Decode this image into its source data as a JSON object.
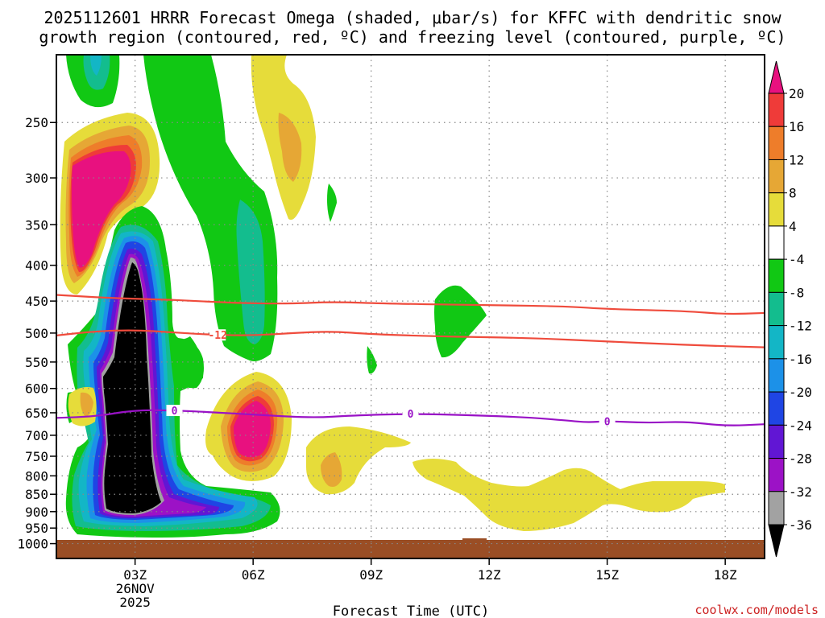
{
  "colors": {
    "magenta": "#e8117f",
    "red": "#ef3b39",
    "orange": "#ee7d2a",
    "amber": "#e6a735",
    "yellow": "#e6dc3a",
    "green": "#11c814",
    "teal": "#13bd8e",
    "cyan": "#13b6c6",
    "sky": "#1c91e8",
    "blue": "#1f45e4",
    "indigo": "#6116d4",
    "purple": "#9c12c6",
    "gray": "#a2a2a2",
    "black": "#000000",
    "ground": "#9a4e25",
    "dgz_line": "#ef4b3c",
    "freezing_line": "#9912c6",
    "grid": "#888888"
  },
  "chart_data": {
    "type": "heatmap",
    "title_line1": "2025112601 HRRR Forecast Omega (shaded, μbar/s) for KFFC with dendritic snow",
    "title_line2": "growth region (contoured, red, ºC) and freezing level (contoured, purple, ºC)",
    "xlabel": "Forecast Time (UTC)",
    "credit": "coolwx.com/models",
    "x_range_hours": [
      1,
      19
    ],
    "y_axis": {
      "type": "pressure_log",
      "range_hPa": [
        200,
        1050
      ],
      "tick_labels": [
        "250",
        "300",
        "350",
        "400",
        "450",
        "500",
        "550",
        "600",
        "650",
        "700",
        "750",
        "800",
        "850",
        "900",
        "950",
        "1000"
      ],
      "tick_values": [
        250,
        300,
        350,
        400,
        450,
        500,
        550,
        600,
        650,
        700,
        750,
        800,
        850,
        900,
        950,
        1000
      ]
    },
    "x_ticks": [
      {
        "hour": 3,
        "label": "03Z",
        "sub1": "26NOV",
        "sub2": "2025"
      },
      {
        "hour": 6,
        "label": "06Z"
      },
      {
        "hour": 9,
        "label": "09Z"
      },
      {
        "hour": 12,
        "label": "12Z"
      },
      {
        "hour": 15,
        "label": "15Z"
      },
      {
        "hour": 18,
        "label": "18Z"
      }
    ],
    "colorbar": {
      "labels": [
        "20",
        "16",
        "12",
        "8",
        "4",
        "-4",
        "-8",
        "-12",
        "-16",
        "-20",
        "-24",
        "-28",
        "-32",
        "-36"
      ],
      "colors": [
        "magenta",
        "red",
        "orange",
        "amber",
        "yellow",
        "white",
        "green",
        "teal",
        "cyan",
        "sky",
        "blue",
        "indigo",
        "purple",
        "gray",
        "black"
      ]
    },
    "contours": [
      {
        "name": "dgz-upper-contour",
        "value": "-12",
        "color": "dgz_line",
        "points": [
          [
            1.0,
            441
          ],
          [
            2.5,
            446
          ],
          [
            4.0,
            448
          ],
          [
            5.5,
            453
          ],
          [
            7.0,
            454
          ],
          [
            8.0,
            451
          ],
          [
            9.5,
            454
          ],
          [
            12.0,
            456
          ],
          [
            14.0,
            458
          ],
          [
            15.0,
            462
          ],
          [
            17.0,
            465
          ],
          [
            18.0,
            470
          ],
          [
            19.0,
            468
          ]
        ]
      },
      {
        "name": "dgz-lower-contour",
        "value": "-12",
        "color": "dgz_line",
        "label": "-12",
        "label_hour": 5.1,
        "points": [
          [
            1.0,
            504
          ],
          [
            2.0,
            497
          ],
          [
            3.0,
            495
          ],
          [
            4.0,
            499
          ],
          [
            5.0,
            503
          ],
          [
            6.0,
            504
          ],
          [
            7.0,
            500
          ],
          [
            8.0,
            497
          ],
          [
            9.0,
            502
          ],
          [
            11.0,
            506
          ],
          [
            13.0,
            508
          ],
          [
            15.0,
            514
          ],
          [
            17.0,
            520
          ],
          [
            19.0,
            524
          ]
        ]
      },
      {
        "name": "freezing-level-contour",
        "value": "0",
        "color": "freezing_line",
        "label": "0",
        "label_hours": [
          4.0,
          10.0,
          15.0
        ],
        "points": [
          [
            1.0,
            661
          ],
          [
            2.0,
            658
          ],
          [
            3.0,
            644
          ],
          [
            4.0,
            645
          ],
          [
            5.0,
            649
          ],
          [
            6.0,
            654
          ],
          [
            7.5,
            661
          ],
          [
            8.5,
            656
          ],
          [
            10.0,
            652
          ],
          [
            11.5,
            655
          ],
          [
            13.0,
            660
          ],
          [
            14.0,
            667
          ],
          [
            14.5,
            671
          ],
          [
            15.0,
            668
          ],
          [
            16.0,
            672
          ],
          [
            17.0,
            669
          ],
          [
            18.0,
            679
          ],
          [
            19.0,
            675
          ]
        ]
      }
    ],
    "omega_regions": [
      {
        "name": "ascent-core-upper-left",
        "layers": [
          "green",
          "teal",
          "cyan"
        ],
        "center": [
          2.1,
          225
        ],
        "note": "negative omega top-left"
      },
      {
        "name": "descent-core-left",
        "layers": [
          "yellow",
          "amber",
          "orange",
          "red",
          "magenta"
        ],
        "center": [
          2.0,
          340
        ]
      },
      {
        "name": "ascent-main-column",
        "layers": [
          "green",
          "teal",
          "cyan",
          "sky",
          "blue",
          "indigo",
          "purple",
          "gray",
          "black"
        ],
        "center": [
          3.0,
          700
        ],
        "min": "below -36"
      },
      {
        "name": "descent-core-0630z",
        "layers": [
          "yellow",
          "amber",
          "orange",
          "red",
          "magenta"
        ],
        "center": [
          6.0,
          690
        ]
      },
      {
        "name": "ascent-band-upper-mid",
        "layers": [
          "green",
          "teal"
        ],
        "center": [
          6.0,
          470
        ]
      },
      {
        "name": "descent-band-upper-right",
        "layers": [
          "yellow",
          "amber"
        ],
        "center": [
          6.8,
          280
        ]
      },
      {
        "name": "ascent-cell-11z",
        "layers": [
          "green"
        ],
        "center": [
          10.9,
          480
        ]
      },
      {
        "name": "descent-lower-right-band",
        "layers": [
          "yellow"
        ],
        "center": [
          15.0,
          850
        ]
      },
      {
        "name": "descent-lower-mid-cell",
        "layers": [
          "yellow",
          "amber"
        ],
        "center": [
          8.0,
          790
        ]
      }
    ]
  }
}
